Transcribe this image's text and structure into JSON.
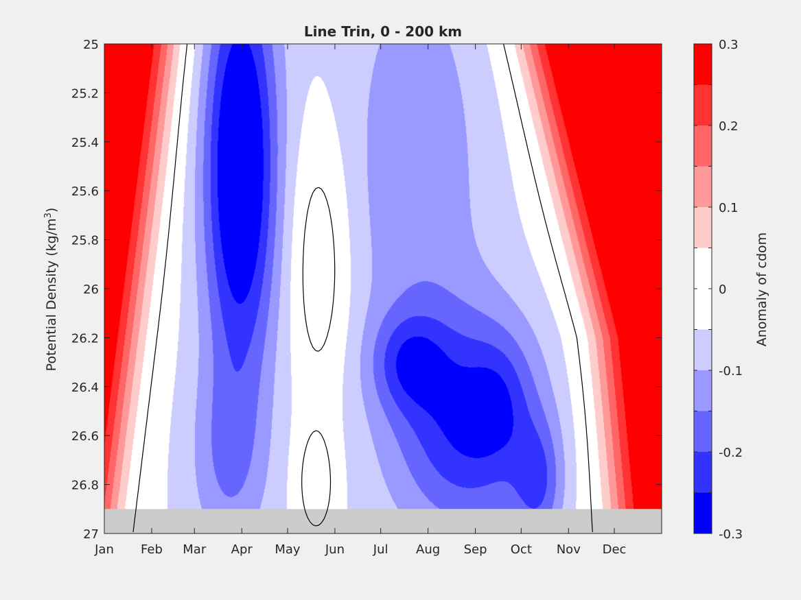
{
  "chart_data": {
    "type": "heatmap",
    "title": "Line Trin, 0 - 200 km",
    "ylabel": "Potential Density (kg/m",
    "ylabel_superscript": "3",
    "ylabel_suffix": ")",
    "colorbar_label": "Anomaly of cdom",
    "x_categories": [
      "Jan",
      "Feb",
      "Mar",
      "Apr",
      "May",
      "Jun",
      "Jul",
      "Aug",
      "Sep",
      "Oct",
      "Nov",
      "Dec"
    ],
    "x_tick_positions_day": [
      1,
      32,
      60,
      91,
      121,
      152,
      182,
      213,
      244,
      274,
      305,
      335
    ],
    "xlim_day": [
      1,
      366
    ],
    "y_ticks": [
      "25",
      "25.2",
      "25.4",
      "25.6",
      "25.8",
      "26",
      "26.2",
      "26.4",
      "26.6",
      "26.8",
      "27"
    ],
    "ylim": [
      25,
      27
    ],
    "y_reversed": true,
    "no_data_below_density": 26.9,
    "no_data_color": "#cccccc",
    "colorbar_ticks": [
      "0.3",
      "0.2",
      "0.1",
      "0",
      "-0.1",
      "-0.2",
      "-0.3"
    ],
    "colorbar_range": [
      -0.3,
      0.3
    ],
    "color_levels": [
      {
        "range": [
          -0.3,
          -0.25
        ],
        "color": "#0000ff"
      },
      {
        "range": [
          -0.25,
          -0.2
        ],
        "color": "#3333ff"
      },
      {
        "range": [
          -0.2,
          -0.15
        ],
        "color": "#6666ff"
      },
      {
        "range": [
          -0.15,
          -0.1
        ],
        "color": "#9999ff"
      },
      {
        "range": [
          -0.1,
          -0.05
        ],
        "color": "#ccccff"
      },
      {
        "range": [
          -0.05,
          0
        ],
        "color": "#ffffff"
      },
      {
        "range": [
          0,
          0.05
        ],
        "color": "#ffffff"
      },
      {
        "range": [
          0.05,
          0.1
        ],
        "color": "#ffcccc"
      },
      {
        "range": [
          0.1,
          0.15
        ],
        "color": "#ff9999"
      },
      {
        "range": [
          0.15,
          0.2
        ],
        "color": "#ff6666"
      },
      {
        "range": [
          0.2,
          0.25
        ],
        "color": "#ff3333"
      },
      {
        "range": [
          0.25,
          0.3
        ],
        "color": "#ff0000"
      }
    ],
    "zero_contour": true
  }
}
